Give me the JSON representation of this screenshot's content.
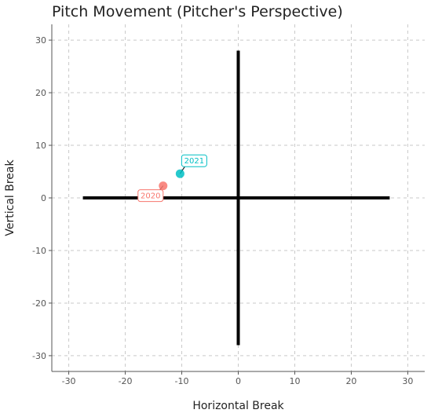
{
  "chart_data": {
    "type": "scatter",
    "title": "Pitch Movement (Pitcher's Perspective)",
    "xlabel": "Horizontal Break",
    "ylabel": "Vertical Break",
    "xlim": [
      -33,
      33
    ],
    "ylim": [
      -33,
      33
    ],
    "xticks": [
      -30,
      -20,
      -10,
      0,
      10,
      20,
      30
    ],
    "yticks": [
      -30,
      -20,
      -10,
      0,
      10,
      20,
      30
    ],
    "grid": true,
    "reference_lines": {
      "horizontal": {
        "y": 0,
        "x_from": -27.5,
        "x_to": 26.8
      },
      "vertical": {
        "x": 0,
        "y_from": -28,
        "y_to": 28
      }
    },
    "points": [
      {
        "x": -13.3,
        "y": 2.3,
        "label": "2020",
        "color": "#F8766D"
      },
      {
        "x": -10.3,
        "y": 4.6,
        "label": "2021",
        "color": "#00BFC4"
      }
    ]
  }
}
